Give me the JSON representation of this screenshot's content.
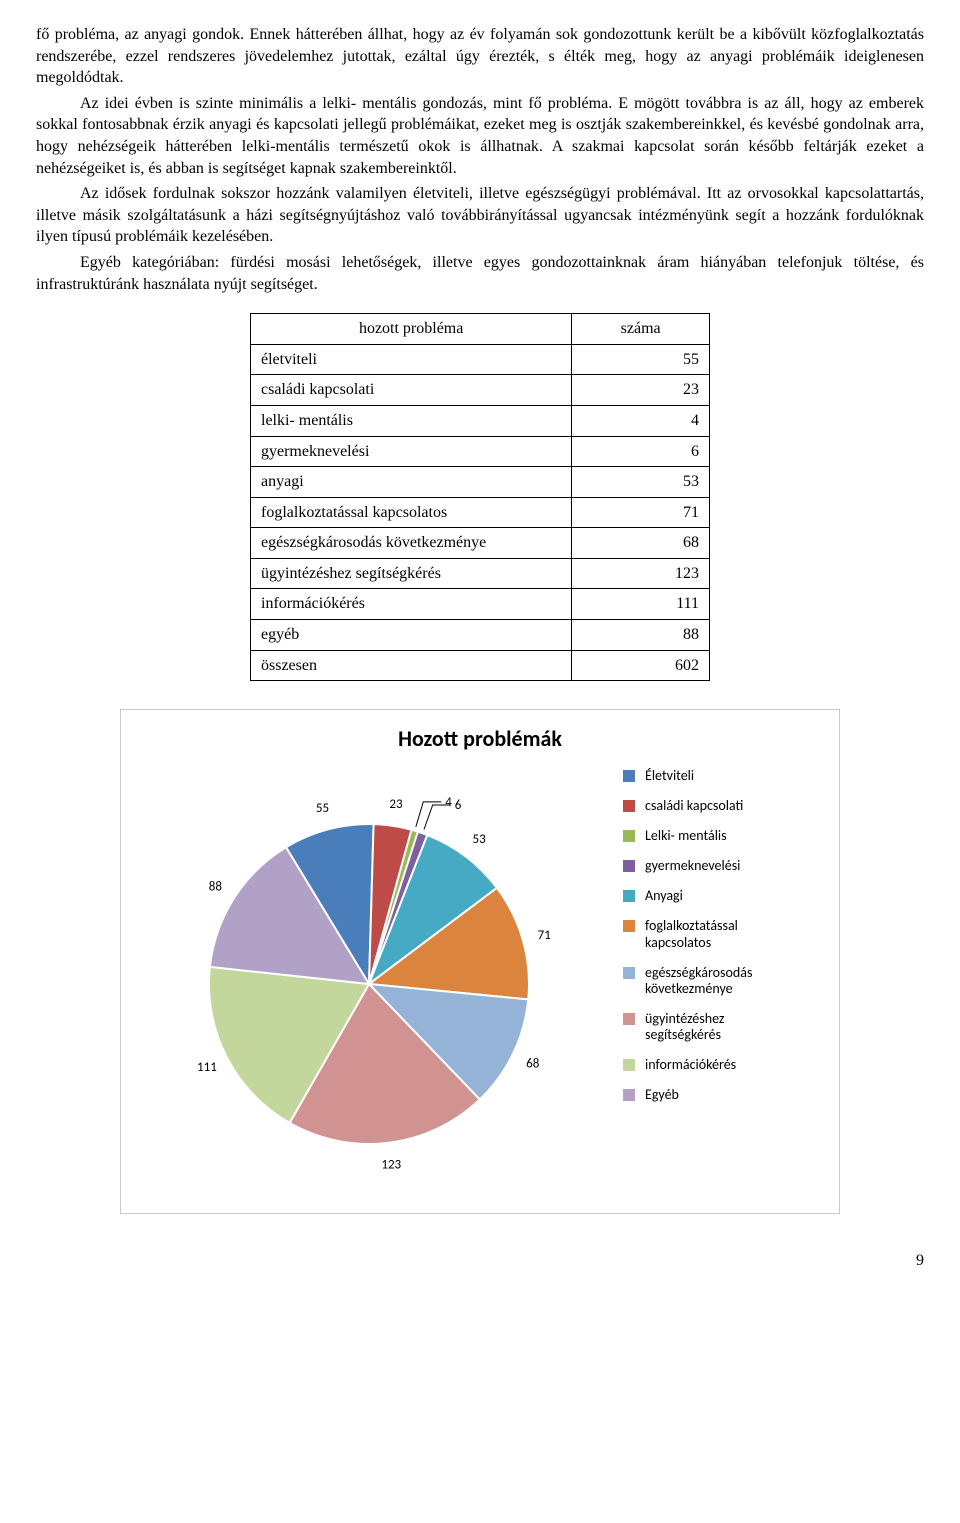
{
  "paragraphs": {
    "p1": "fő probléma, az anyagi gondok. Ennek hátterében állhat, hogy az év folyamán sok gondozottunk került be a kibővült közfoglalkoztatás rendszerébe, ezzel rendszeres jövedelemhez jutottak, ezáltal úgy érezték, s élték meg, hogy az anyagi problémáik ideiglenesen megoldódtak.",
    "p2": "Az idei évben is szinte minimális a lelki- mentális gondozás, mint fő probléma. E mögött továbbra is az áll, hogy az emberek sokkal fontosabbnak érzik anyagi és kapcsolati jellegű problémáikat, ezeket meg is osztják szakembereinkkel, és kevésbé gondolnak arra, hogy nehézségeik hátterében lelki-mentális természetű okok is állhatnak. A szakmai kapcsolat során később feltárják ezeket a nehézségeiket is, és abban is segítséget kapnak szakembereinktől.",
    "p3": "Az idősek fordulnak sokszor hozzánk valamilyen életviteli, illetve egészségügyi problémával. Itt az orvosokkal kapcsolattartás, illetve másik szolgáltatásunk a házi segítségnyújtáshoz való továbbirányítással ugyancsak intézményünk segít a hozzánk fordulóknak ilyen típusú problémáik kezelésében.",
    "p4": "Egyéb kategóriában: fürdési mosási lehetőségek, illetve egyes gondozottainknak áram hiányában telefonjuk töltése, és infrastruktúránk használata nyújt segítséget."
  },
  "table": {
    "col1_header": "hozott probléma",
    "col2_header": "száma",
    "rows": [
      {
        "label": "életviteli",
        "value": 55
      },
      {
        "label": "családi kapcsolati",
        "value": 23
      },
      {
        "label": "lelki- mentális",
        "value": 4
      },
      {
        "label": "gyermeknevelési",
        "value": 6
      },
      {
        "label": "anyagi",
        "value": 53
      },
      {
        "label": "foglalkoztatással kapcsolatos",
        "value": 71
      },
      {
        "label": "egészségkárosodás következménye",
        "value": 68
      },
      {
        "label": "ügyintézéshez segítségkérés",
        "value": 123
      },
      {
        "label": "információkérés",
        "value": 111
      },
      {
        "label": "egyéb",
        "value": 88
      },
      {
        "label": "összesen",
        "value": 602
      }
    ]
  },
  "chart": {
    "type": "pie",
    "title": "Hozott problémák",
    "title_fontsize": 22,
    "title_fontweight": "bold",
    "font_family": "Calibri",
    "background_color": "#ffffff",
    "border_color": "#c9c9c9",
    "pie_border_color": "#ffffff",
    "pie_border_width": 2,
    "label_fontsize": 13,
    "label_color": "#000000",
    "legend_fontsize": 14,
    "legend_position": "right",
    "leader_line_color": "#000000",
    "slices": [
      {
        "label": "Életviteli",
        "value": 55,
        "color": "#4a7ebb"
      },
      {
        "label": "családi kapcsolati",
        "value": 23,
        "color": "#be4b48"
      },
      {
        "label": "Lelki- mentális",
        "value": 4,
        "color": "#98b954"
      },
      {
        "label": "gyermeknevelési",
        "value": 6,
        "color": "#7d60a0"
      },
      {
        "label": "Anyagi",
        "value": 53,
        "color": "#46aac5"
      },
      {
        "label": "foglalkoztatással kapcsolatos",
        "value": 71,
        "color": "#db843d"
      },
      {
        "label": "egészségkárosodás következménye",
        "value": 68,
        "color": "#95b3d7"
      },
      {
        "label": "ügyintézéshez segítségkérés",
        "value": 123,
        "color": "#d19392"
      },
      {
        "label": "információkérés",
        "value": 111,
        "color": "#c3d69b"
      },
      {
        "label": "Egyéb",
        "value": 88,
        "color": "#b2a1c7"
      }
    ]
  },
  "page_number": "9"
}
